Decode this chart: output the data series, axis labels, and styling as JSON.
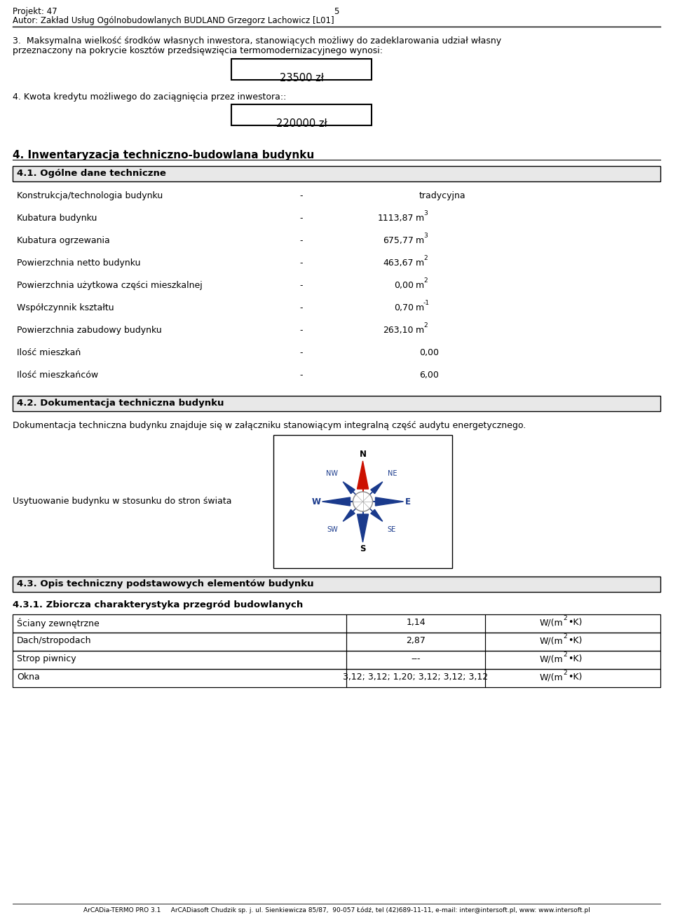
{
  "header_left": "Projekt: 47",
  "header_center": "5",
  "header_line2": "Autor: Zakład Usług Ogólnobudowlanych BUDLAND Grzegorz Lachowicz [L01]",
  "section3_line1": "3.  Maksymalna wielkość środków własnych inwestora, stanowiących możliwy do zadeklarowania udział własny",
  "section3_line2": "przeznaczony na pokrycie kosztów przedsięwzięcia termomodernizacyjnego wynosi:",
  "box1_value": "23500 zł",
  "section4_kredyt": "4. Kwota kredytu możliwego do zaciągnięcia przez inwestora::",
  "box2_value": "220000 zł",
  "section4_title": "4. Inwentaryzacja techniczno-budowlana budynku",
  "section41_title": "4.1. Ogólne dane techniczne",
  "rows": [
    {
      "label": "Konstrukcja/technologia budynku",
      "dash": "-",
      "value": "tradycyjna",
      "unit": ""
    },
    {
      "label": "Kubatura budynku",
      "dash": "-",
      "value": "1113,87",
      "unit": "m3"
    },
    {
      "label": "Kubatura ogrzewania",
      "dash": "-",
      "value": "675,77",
      "unit": "m3"
    },
    {
      "label": "Powierzchnia netto budynku",
      "dash": "-",
      "value": "463,67",
      "unit": "m2"
    },
    {
      "label": "Powierzchnia użytkowa części mieszkalnej",
      "dash": "-",
      "value": "0,00",
      "unit": "m2"
    },
    {
      "label": "Współczynnik kształtu",
      "dash": "-",
      "value": "0,70",
      "unit": "m-1"
    },
    {
      "label": "Powierzchnia zabudowy budynku",
      "dash": "-",
      "value": "263,10",
      "unit": "m2"
    },
    {
      "label": "Ilość mieszkań",
      "dash": "-",
      "value": "0,00",
      "unit": ""
    },
    {
      "label": "Ilość mieszkańców",
      "dash": "-",
      "value": "6,00",
      "unit": ""
    }
  ],
  "section42_title": "4.2. Dokumentacja techniczna budynku",
  "doc_text": "Dokumentacja techniczna budynku znajduje się w załączniku stanowiącym integralną część audytu energetycznego.",
  "compass_label": "Usytuowanie budynku w stosunku do stron świata",
  "section43_title": "4.3. Opis techniczny podstawowych elementów budynku",
  "section431_title": "4.3.1. Zbiorcza charakterystyka przegród budowlanych",
  "table_rows": [
    {
      "name": "Ściany zewnętrzne",
      "value": "1,14"
    },
    {
      "name": "Dach/stropodach",
      "value": "2,87"
    },
    {
      "name": "Strop piwnicy",
      "value": "---"
    },
    {
      "name": "Okna",
      "value": "3,12; 3,12; 1,20; 3,12; 3,12; 3,12"
    }
  ],
  "footer_text": "ArCADia-TERMO PRO 3.1     ArCADiasoft Chudzik sp. j. ul. Sienkiewicza 85/87,  90-057 Łódź, tel (42)689-11-11, e-mail: inter@intersoft.pl, www: www.intersoft.pl",
  "bg_color": "#ffffff"
}
